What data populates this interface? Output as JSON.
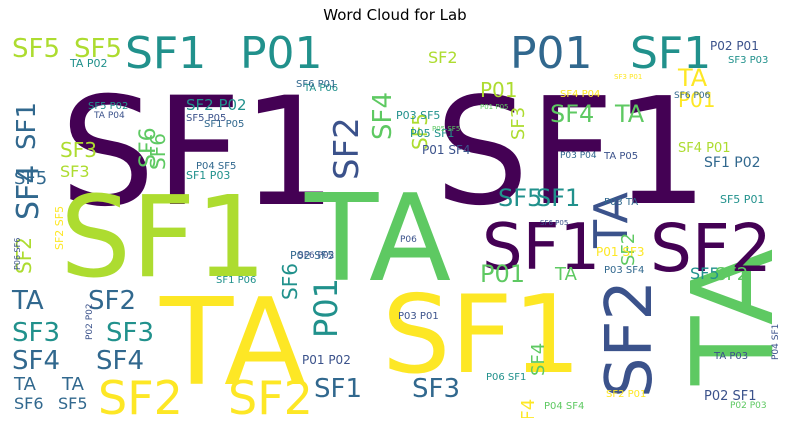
{
  "title": "Word Cloud for Lab",
  "palette": {
    "dark_purple": "#440154",
    "indigo": "#3b528b",
    "teal": "#21918c",
    "green": "#5ec962",
    "lime": "#addc30",
    "yellow": "#fde725",
    "slate": "#31688e"
  },
  "words": [
    "SF1",
    "SF1",
    "SF1",
    "TA",
    "TA",
    "TA",
    "SF1",
    "SF2",
    "SF1",
    "SF2",
    "TA",
    "SF2",
    "SF2",
    "SF1",
    "SF5",
    "SF5",
    "P01",
    "SF1",
    "P01",
    "TA",
    "SF4",
    "TA",
    "P01",
    "SF1",
    "SF3",
    "P01",
    "TA",
    "SF2",
    "SF6",
    "SF4",
    "SF3",
    "SF3",
    "SF3",
    "SF2",
    "SF4",
    "SF4",
    "SF5",
    "SF1",
    "SF5",
    "SF6",
    "SF2",
    "P01",
    "SF1",
    "SF6",
    "SF4",
    "SF3",
    "SF5",
    "TA",
    "SF5",
    "TA",
    "SF6",
    "SF5",
    "SF2",
    "SF2",
    "P01",
    "SF3",
    "TA",
    "SF4",
    "SF2",
    "SF4",
    "P02 P01",
    "SF3 P03",
    "TA P02",
    "SF5 P02",
    "SF2 P02",
    "P03 SF5",
    "P05 SF1",
    "P01 SF4",
    "SF1 P02",
    "SF6 P06",
    "P02 SF1",
    "P02 P03",
    "TA P06",
    "SF1 P05",
    "P06 SF1",
    "TA P03",
    "P04 SF4",
    "P01 SF3",
    "P02 SF5",
    "P03 SF4",
    "SF1 P03",
    "SF1 P06",
    "P03 P01",
    "P01 P02",
    "SF4 P01",
    "SF6 P01",
    "SF2 P01",
    "TA P05",
    "SF4 P04",
    "SF5 P01",
    "P01 P05",
    "P04 SF5",
    "P03 P04",
    "P05 SF5",
    "SF6 P02",
    "P03 TA",
    "P06",
    "SF5 P05",
    "TA P04",
    "SF3 P01",
    "P04 SF1",
    "P06 SF6",
    "SF2 SF5",
    "SF6 P05",
    "P02 P02"
  ]
}
